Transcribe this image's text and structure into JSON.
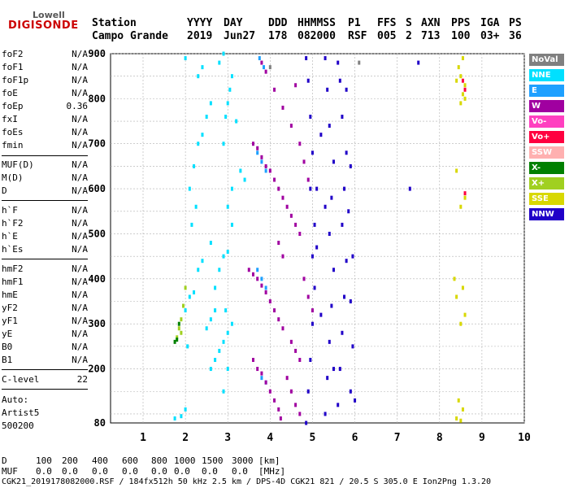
{
  "logo": {
    "line1": "Lowell",
    "line2": "DIGISONDE"
  },
  "header": {
    "labels": [
      "Station",
      "YYYY",
      "DAY",
      "DDD",
      "HHMMSS",
      "P1",
      "FFS",
      "S",
      "AXN",
      "PPS",
      "IGA",
      "PS"
    ],
    "values": [
      "Campo Grande",
      "2019",
      "Jun27",
      "178",
      "082000",
      "RSF",
      "005",
      "2",
      "713",
      "100",
      "03+",
      "36"
    ]
  },
  "params": {
    "group1": [
      {
        "name": "foF2",
        "value": "N/A"
      },
      {
        "name": "foF1",
        "value": "N/A"
      },
      {
        "name": "foF1p",
        "value": "N/A"
      },
      {
        "name": "foE",
        "value": "N/A"
      },
      {
        "name": "foEp",
        "value": "0.36"
      },
      {
        "name": "fxI",
        "value": "N/A"
      },
      {
        "name": "foEs",
        "value": "N/A"
      },
      {
        "name": "fmin",
        "value": "N/A"
      }
    ],
    "group2": [
      {
        "name": "MUF(D)",
        "value": "N/A"
      },
      {
        "name": "M(D)",
        "value": "N/A"
      },
      {
        "name": "D",
        "value": "N/A"
      }
    ],
    "group3": [
      {
        "name": "h`F",
        "value": "N/A"
      },
      {
        "name": "h`F2",
        "value": "N/A"
      },
      {
        "name": "h`E",
        "value": "N/A"
      },
      {
        "name": "h`Es",
        "value": "N/A"
      }
    ],
    "group4": [
      {
        "name": "hmF2",
        "value": "N/A"
      },
      {
        "name": "hmF1",
        "value": "N/A"
      },
      {
        "name": "hmE",
        "value": "N/A"
      },
      {
        "name": "yF2",
        "value": "N/A"
      },
      {
        "name": "yF1",
        "value": "N/A"
      },
      {
        "name": "yE",
        "value": "N/A"
      },
      {
        "name": "B0",
        "value": "N/A"
      },
      {
        "name": "B1",
        "value": "N/A"
      }
    ],
    "clevel": {
      "name": "C-level",
      "value": "22"
    },
    "auto": [
      "Auto:",
      "Artist5",
      "500200"
    ]
  },
  "legend": [
    {
      "label": "NoVal",
      "color": "#808080"
    },
    {
      "label": "NNE",
      "color": "#00e0ff"
    },
    {
      "label": "E",
      "color": "#1ea0ff"
    },
    {
      "label": "W",
      "color": "#a000a0"
    },
    {
      "label": "Vo-",
      "color": "#ff40c0"
    },
    {
      "label": "Vo+",
      "color": "#ff0040"
    },
    {
      "label": "SSW",
      "color": "#ffb0b0"
    },
    {
      "label": "X-",
      "color": "#008000"
    },
    {
      "label": "X+",
      "color": "#a0d020"
    },
    {
      "label": "SSE",
      "color": "#d8d800"
    },
    {
      "label": "NNW",
      "color": "#2000c8"
    }
  ],
  "footer": {
    "d_label": "D",
    "d_values": [
      "100",
      "200",
      "400",
      "600",
      "800",
      "1000",
      "1500",
      "3000",
      "[km]"
    ],
    "muf_label": "MUF",
    "muf_values": [
      "0.0",
      "0.0",
      "0.0",
      "0.0",
      "0.0",
      "0.0",
      "0.0",
      "0.0",
      "[MHz]"
    ],
    "info": "CGK21_2019178082000.RSF / 184fx512h 50 kHz 2.5 km / DPS-4D CGK21 821 / 20.5 S 305.0 E Ion2Png 1.3.20"
  },
  "chart_data": {
    "type": "scatter",
    "x_ticks": [
      "1",
      "2",
      "3",
      "4",
      "5",
      "6",
      "7",
      "8",
      "9",
      "10"
    ],
    "y_ticks": [
      "80",
      "200",
      "300",
      "400",
      "500",
      "600",
      "700",
      "800",
      "900"
    ],
    "xlim": [
      1,
      10
    ],
    "ylim": [
      80,
      900
    ],
    "grid": true,
    "legend_position": "right",
    "series": [
      {
        "name": "NNE",
        "color": "#00e0ff",
        "points": [
          [
            1.75,
            90
          ],
          [
            1.9,
            95
          ],
          [
            2.0,
            110
          ],
          [
            2.05,
            250
          ],
          [
            2.0,
            330
          ],
          [
            2.1,
            360
          ],
          [
            2.2,
            370
          ],
          [
            2.3,
            420
          ],
          [
            2.4,
            440
          ],
          [
            2.15,
            520
          ],
          [
            2.25,
            560
          ],
          [
            2.1,
            600
          ],
          [
            2.2,
            650
          ],
          [
            2.3,
            700
          ],
          [
            2.4,
            720
          ],
          [
            2.5,
            760
          ],
          [
            2.6,
            790
          ],
          [
            2.3,
            850
          ],
          [
            2.4,
            870
          ],
          [
            2.0,
            890
          ],
          [
            2.9,
            150
          ],
          [
            3.0,
            200
          ],
          [
            2.9,
            260
          ],
          [
            3.0,
            280
          ],
          [
            3.1,
            300
          ],
          [
            2.95,
            330
          ],
          [
            3.0,
            460
          ],
          [
            3.1,
            520
          ],
          [
            3.0,
            560
          ],
          [
            3.1,
            600
          ],
          [
            2.9,
            700
          ],
          [
            2.95,
            760
          ],
          [
            3.0,
            790
          ],
          [
            3.05,
            820
          ],
          [
            3.1,
            850
          ],
          [
            2.8,
            880
          ],
          [
            2.9,
            900
          ],
          [
            3.2,
            750
          ],
          [
            3.3,
            640
          ],
          [
            3.4,
            620
          ],
          [
            2.6,
            200
          ],
          [
            2.7,
            220
          ],
          [
            2.8,
            240
          ],
          [
            2.5,
            290
          ],
          [
            2.6,
            310
          ],
          [
            2.7,
            330
          ],
          [
            2.7,
            380
          ],
          [
            2.8,
            420
          ],
          [
            2.9,
            450
          ],
          [
            2.6,
            480
          ]
        ]
      },
      {
        "name": "E",
        "color": "#1ea0ff",
        "points": [
          [
            3.8,
            180
          ],
          [
            3.9,
            170
          ],
          [
            3.7,
            420
          ],
          [
            3.8,
            400
          ],
          [
            3.9,
            380
          ],
          [
            3.7,
            680
          ],
          [
            3.8,
            660
          ],
          [
            3.9,
            640
          ],
          [
            3.75,
            890
          ],
          [
            3.85,
            870
          ]
        ]
      },
      {
        "name": "W",
        "color": "#a000a0",
        "points": [
          [
            3.6,
            220
          ],
          [
            3.7,
            200
          ],
          [
            3.8,
            190
          ],
          [
            3.9,
            170
          ],
          [
            4.0,
            150
          ],
          [
            4.1,
            130
          ],
          [
            4.2,
            110
          ],
          [
            4.25,
            90
          ],
          [
            3.5,
            420
          ],
          [
            3.6,
            410
          ],
          [
            3.7,
            400
          ],
          [
            3.8,
            385
          ],
          [
            3.9,
            370
          ],
          [
            4.0,
            350
          ],
          [
            4.1,
            330
          ],
          [
            4.2,
            310
          ],
          [
            4.3,
            290
          ],
          [
            4.5,
            260
          ],
          [
            4.6,
            240
          ],
          [
            4.7,
            220
          ],
          [
            3.6,
            700
          ],
          [
            3.7,
            690
          ],
          [
            3.8,
            670
          ],
          [
            3.9,
            650
          ],
          [
            4.0,
            640
          ],
          [
            4.1,
            620
          ],
          [
            4.2,
            600
          ],
          [
            4.3,
            580
          ],
          [
            4.4,
            560
          ],
          [
            4.5,
            540
          ],
          [
            4.6,
            520
          ],
          [
            4.7,
            500
          ],
          [
            3.8,
            880
          ],
          [
            3.9,
            860
          ],
          [
            4.1,
            820
          ],
          [
            4.3,
            780
          ],
          [
            4.5,
            740
          ],
          [
            4.7,
            700
          ],
          [
            4.8,
            660
          ],
          [
            4.9,
            620
          ],
          [
            4.4,
            180
          ],
          [
            4.5,
            150
          ],
          [
            4.6,
            120
          ],
          [
            4.7,
            100
          ],
          [
            4.8,
            400
          ],
          [
            4.9,
            360
          ],
          [
            5.0,
            330
          ],
          [
            4.2,
            480
          ],
          [
            4.3,
            450
          ],
          [
            4.6,
            830
          ]
        ]
      },
      {
        "name": "NNW",
        "color": "#2000c8",
        "points": [
          [
            4.85,
            80
          ],
          [
            4.9,
            150
          ],
          [
            4.95,
            220
          ],
          [
            5.0,
            300
          ],
          [
            5.05,
            380
          ],
          [
            5.0,
            450
          ],
          [
            5.05,
            520
          ],
          [
            5.1,
            600
          ],
          [
            5.0,
            680
          ],
          [
            4.95,
            760
          ],
          [
            4.9,
            840
          ],
          [
            4.85,
            890
          ],
          [
            5.3,
            100
          ],
          [
            5.35,
            180
          ],
          [
            5.4,
            260
          ],
          [
            5.45,
            340
          ],
          [
            5.5,
            420
          ],
          [
            5.4,
            500
          ],
          [
            5.45,
            580
          ],
          [
            5.5,
            660
          ],
          [
            5.4,
            740
          ],
          [
            5.35,
            820
          ],
          [
            5.3,
            890
          ],
          [
            5.6,
            120
          ],
          [
            5.65,
            200
          ],
          [
            5.7,
            280
          ],
          [
            5.75,
            360
          ],
          [
            5.8,
            440
          ],
          [
            5.7,
            520
          ],
          [
            5.75,
            600
          ],
          [
            5.8,
            680
          ],
          [
            5.7,
            760
          ],
          [
            5.65,
            840
          ],
          [
            5.6,
            880
          ],
          [
            5.9,
            150
          ],
          [
            5.95,
            250
          ],
          [
            5.9,
            350
          ],
          [
            5.95,
            450
          ],
          [
            5.85,
            550
          ],
          [
            5.9,
            650
          ],
          [
            6.0,
            130
          ],
          [
            5.5,
            200
          ],
          [
            5.2,
            320
          ],
          [
            5.1,
            470
          ],
          [
            5.3,
            560
          ],
          [
            5.2,
            720
          ],
          [
            4.95,
            600
          ],
          [
            5.8,
            820
          ],
          [
            7.3,
            600
          ],
          [
            7.5,
            880
          ]
        ]
      },
      {
        "name": "SSE",
        "color": "#d8d800",
        "points": [
          [
            8.4,
            90
          ],
          [
            8.5,
            85
          ],
          [
            8.55,
            110
          ],
          [
            8.45,
            130
          ],
          [
            8.5,
            300
          ],
          [
            8.6,
            320
          ],
          [
            8.4,
            360
          ],
          [
            8.55,
            380
          ],
          [
            8.5,
            560
          ],
          [
            8.6,
            580
          ],
          [
            8.4,
            640
          ],
          [
            8.5,
            790
          ],
          [
            8.55,
            810
          ],
          [
            8.6,
            830
          ],
          [
            8.5,
            850
          ],
          [
            8.45,
            870
          ],
          [
            8.55,
            890
          ],
          [
            8.4,
            840
          ],
          [
            8.6,
            800
          ],
          [
            8.35,
            400
          ]
        ]
      },
      {
        "name": "X+",
        "color": "#a0d020",
        "points": [
          [
            1.8,
            270
          ],
          [
            1.85,
            290
          ],
          [
            1.9,
            310
          ],
          [
            1.95,
            340
          ],
          [
            2.0,
            380
          ],
          [
            1.9,
            280
          ]
        ]
      },
      {
        "name": "X-",
        "color": "#008000",
        "points": [
          [
            1.75,
            260
          ],
          [
            1.8,
            265
          ],
          [
            1.85,
            300
          ]
        ]
      },
      {
        "name": "Vo+",
        "color": "#ff0040",
        "points": [
          [
            8.6,
            590
          ],
          [
            8.55,
            840
          ],
          [
            8.6,
            820
          ]
        ]
      },
      {
        "name": "NoVal",
        "color": "#808080",
        "points": [
          [
            4.0,
            870
          ],
          [
            6.1,
            880
          ]
        ]
      }
    ]
  }
}
